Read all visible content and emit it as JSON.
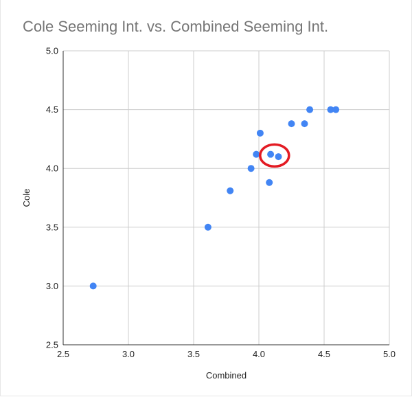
{
  "chart_data": {
    "type": "scatter",
    "title": "Cole Seeming Int. vs. Combined Seeming Int.",
    "xlabel": "Combined",
    "ylabel": "Cole",
    "xlim": [
      2.5,
      5.0
    ],
    "ylim": [
      2.5,
      5.0
    ],
    "x_ticks": [
      "2.5",
      "3.0",
      "3.5",
      "4.0",
      "4.5",
      "5.0"
    ],
    "y_ticks": [
      "2.5",
      "3.0",
      "3.5",
      "4.0",
      "4.5",
      "5.0"
    ],
    "grid": true,
    "legend": "none",
    "series": [
      {
        "color": "#4285f4",
        "points": [
          {
            "x": 2.73,
            "y": 3.0
          },
          {
            "x": 3.61,
            "y": 3.5
          },
          {
            "x": 3.78,
            "y": 3.81
          },
          {
            "x": 3.94,
            "y": 4.0
          },
          {
            "x": 3.98,
            "y": 4.12
          },
          {
            "x": 4.01,
            "y": 4.3
          },
          {
            "x": 4.08,
            "y": 3.88
          },
          {
            "x": 4.09,
            "y": 4.12
          },
          {
            "x": 4.15,
            "y": 4.1
          },
          {
            "x": 4.25,
            "y": 4.38
          },
          {
            "x": 4.35,
            "y": 4.38
          },
          {
            "x": 4.39,
            "y": 4.5
          },
          {
            "x": 4.55,
            "y": 4.5
          },
          {
            "x": 4.59,
            "y": 4.5
          }
        ]
      }
    ],
    "annotation": {
      "type": "circle-highlight",
      "color": "#e31b23",
      "x": 4.12,
      "y": 4.11
    }
  }
}
